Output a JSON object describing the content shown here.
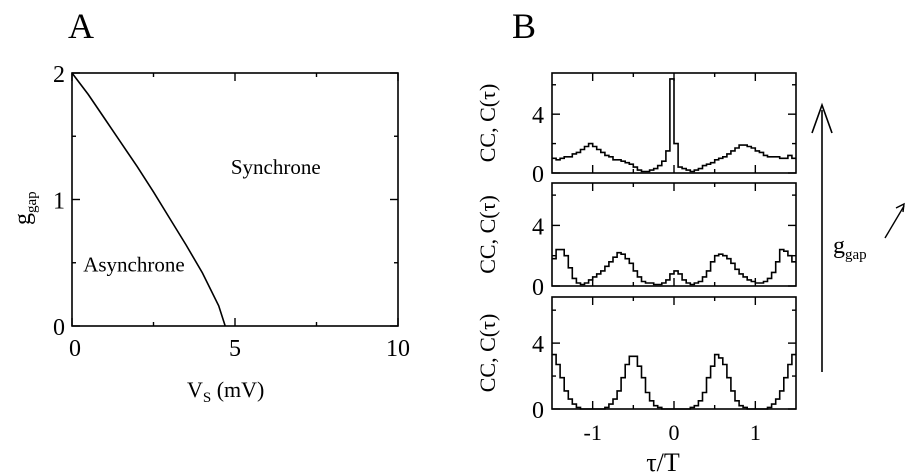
{
  "chart_data": [
    {
      "type": "line",
      "panel_label": "A",
      "xlabel": {
        "main": "V",
        "sub": "S",
        "unit": " (mV)"
      },
      "ylabel": {
        "main": "g",
        "sub": "gap"
      },
      "xlim": [
        0,
        10
      ],
      "ylim": [
        0,
        2
      ],
      "xticks": [
        "0",
        "5",
        "10"
      ],
      "yticks": [
        "0",
        "1",
        "2"
      ],
      "series": [
        {
          "x": [
            0,
            0.5,
            1.0,
            1.5,
            2.0,
            2.5,
            3.0,
            3.5,
            4.0,
            4.5,
            4.7
          ],
          "y": [
            2.0,
            1.83,
            1.64,
            1.45,
            1.26,
            1.06,
            0.85,
            0.64,
            0.42,
            0.16,
            0.0
          ]
        }
      ],
      "annotations": [
        {
          "text": "Synchrone",
          "x": 6.25,
          "y": 1.2
        },
        {
          "text": "Asynchrone",
          "x": 1.9,
          "y": 0.43
        }
      ]
    },
    {
      "type": "step",
      "panel_label": "B",
      "xlabel": "τ/T",
      "ylabel": "CC, C(τ)",
      "xlim": [
        -1.5,
        1.5
      ],
      "ylim": [
        0,
        6.8
      ],
      "xticks": [
        "-1",
        "0",
        "1"
      ],
      "yticks": [
        "0",
        "4"
      ],
      "bin_width": 0.05,
      "side_label": {
        "main": "g",
        "sub": "gap"
      },
      "panels": [
        {
          "name": "top",
          "values": [
            1.0,
            0.9,
            1.0,
            1.1,
            1.1,
            1.3,
            1.4,
            1.6,
            1.8,
            2.0,
            1.8,
            1.6,
            1.4,
            1.2,
            1.1,
            0.9,
            0.9,
            0.8,
            0.7,
            0.6,
            0.4,
            0.2,
            0.1,
            0.1,
            0.2,
            0.3,
            0.5,
            0.8,
            1.5,
            6.4,
            2.0,
            0.4,
            0.3,
            0.2,
            0.1,
            0.2,
            0.3,
            0.5,
            0.6,
            0.7,
            0.9,
            1.0,
            1.1,
            1.3,
            1.5,
            1.7,
            1.9,
            1.9,
            1.8,
            1.7,
            1.5,
            1.4,
            1.2,
            1.1,
            1.1,
            1.1,
            1.0,
            1.0,
            1.2,
            1.0
          ]
        },
        {
          "name": "middle",
          "values": [
            1.8,
            2.4,
            2.4,
            2.0,
            1.2,
            0.5,
            0.2,
            0.1,
            0.2,
            0.4,
            0.6,
            0.8,
            1.0,
            1.3,
            1.6,
            1.9,
            2.2,
            2.1,
            1.8,
            1.5,
            1.0,
            0.6,
            0.3,
            0.2,
            0.2,
            0.1,
            0.1,
            0.2,
            0.4,
            0.8,
            1.0,
            0.8,
            0.4,
            0.2,
            0.1,
            0.2,
            0.3,
            0.6,
            1.0,
            1.6,
            2.0,
            2.1,
            2.0,
            1.8,
            1.5,
            1.1,
            0.8,
            0.6,
            0.4,
            0.3,
            0.2,
            0.2,
            0.3,
            0.5,
            0.9,
            1.6,
            2.4,
            2.3,
            2.0,
            1.6
          ]
        },
        {
          "name": "bottom",
          "values": [
            3.3,
            2.7,
            1.9,
            1.1,
            0.6,
            0.3,
            0.1,
            0.0,
            0.0,
            0.0,
            0.0,
            0.0,
            0.0,
            0.1,
            0.3,
            0.6,
            1.1,
            1.9,
            2.7,
            3.2,
            3.2,
            2.6,
            1.9,
            1.0,
            0.5,
            0.2,
            0.1,
            0.0,
            0.0,
            0.0,
            0.0,
            0.0,
            0.0,
            0.0,
            0.1,
            0.2,
            0.5,
            1.0,
            1.9,
            2.6,
            3.3,
            3.1,
            2.7,
            1.9,
            1.1,
            0.5,
            0.2,
            0.1,
            0.0,
            0.0,
            0.0,
            0.0,
            0.0,
            0.1,
            0.3,
            0.6,
            1.1,
            1.9,
            2.7,
            3.3
          ]
        }
      ]
    }
  ]
}
